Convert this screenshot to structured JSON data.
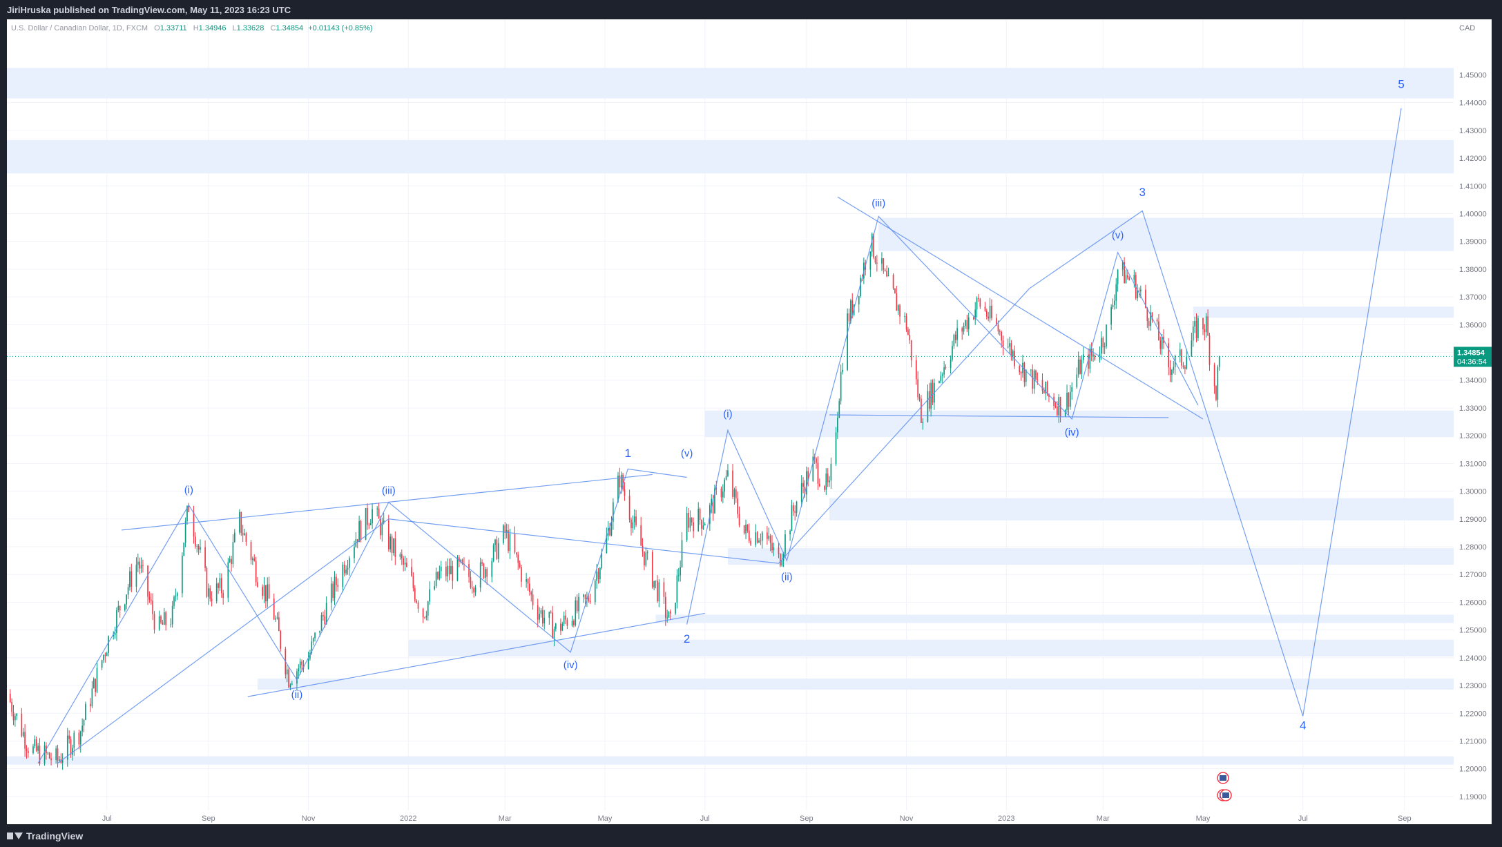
{
  "header": {
    "publisher": "JiriHruska published on TradingView.com, May 11, 2023 16:23 UTC"
  },
  "legend": {
    "symbol": "U.S. Dollar / Canadian Dollar, 1D, FXCM",
    "open_label": "O",
    "open": "1.33711",
    "high_label": "H",
    "high": "1.34946",
    "low_label": "L",
    "low": "1.33628",
    "close_label": "C",
    "close": "1.34854",
    "change": "+0.01143 (+0.85%)"
  },
  "footer": {
    "brand": "TradingView"
  },
  "colors": {
    "up": "#089981",
    "down": "#f23645",
    "zone": "#e8effd",
    "line": "#5b8def",
    "label": "#2962ff",
    "grid": "#f0f3fa"
  },
  "chart_data": {
    "type": "candlestick",
    "currency_label": "CAD",
    "ylim": [
      1.185,
      1.47
    ],
    "y_ticks": [
      1.19,
      1.2,
      1.21,
      1.22,
      1.23,
      1.24,
      1.25,
      1.26,
      1.27,
      1.28,
      1.29,
      1.3,
      1.31,
      1.32,
      1.33,
      1.34,
      1.35,
      1.36,
      1.37,
      1.38,
      1.39,
      1.4,
      1.41,
      1.42,
      1.43,
      1.44,
      1.45
    ],
    "x_ticks": [
      {
        "label": "Jul",
        "date": "2021-07-01"
      },
      {
        "label": "Sep",
        "date": "2021-09-01"
      },
      {
        "label": "Nov",
        "date": "2021-11-01"
      },
      {
        "label": "2022",
        "date": "2022-01-01"
      },
      {
        "label": "Mar",
        "date": "2022-03-01"
      },
      {
        "label": "May",
        "date": "2022-05-01"
      },
      {
        "label": "Jul",
        "date": "2022-07-01"
      },
      {
        "label": "Sep",
        "date": "2022-09-01"
      },
      {
        "label": "Nov",
        "date": "2022-11-01"
      },
      {
        "label": "2023",
        "date": "2023-01-01"
      },
      {
        "label": "Mar",
        "date": "2023-03-01"
      },
      {
        "label": "May",
        "date": "2023-05-01"
      },
      {
        "label": "Jul",
        "date": "2023-07-01"
      },
      {
        "label": "Sep",
        "date": "2023-09-01"
      }
    ],
    "x_range": [
      "2021-05-01",
      "2023-10-01"
    ],
    "last_price": "1.34854",
    "countdown": "04:36:54",
    "price_path": [
      [
        "2021-05-01",
        1.227
      ],
      [
        "2021-05-15",
        1.207
      ],
      [
        "2021-06-01",
        1.203
      ],
      [
        "2021-06-15",
        1.214
      ],
      [
        "2021-07-01",
        1.245
      ],
      [
        "2021-07-10",
        1.26
      ],
      [
        "2021-07-20",
        1.275
      ],
      [
        "2021-08-01",
        1.25
      ],
      [
        "2021-08-10",
        1.255
      ],
      [
        "2021-08-20",
        1.295
      ],
      [
        "2021-09-01",
        1.263
      ],
      [
        "2021-09-10",
        1.265
      ],
      [
        "2021-09-20",
        1.289
      ],
      [
        "2021-10-01",
        1.27
      ],
      [
        "2021-10-10",
        1.258
      ],
      [
        "2021-10-20",
        1.233
      ],
      [
        "2021-11-01",
        1.24
      ],
      [
        "2021-11-10",
        1.255
      ],
      [
        "2021-11-20",
        1.27
      ],
      [
        "2021-12-01",
        1.285
      ],
      [
        "2021-12-10",
        1.293
      ],
      [
        "2021-12-20",
        1.282
      ],
      [
        "2022-01-01",
        1.27
      ],
      [
        "2022-01-10",
        1.256
      ],
      [
        "2022-01-20",
        1.27
      ],
      [
        "2022-02-01",
        1.272
      ],
      [
        "2022-02-10",
        1.268
      ],
      [
        "2022-02-20",
        1.275
      ],
      [
        "2022-03-01",
        1.285
      ],
      [
        "2022-03-10",
        1.272
      ],
      [
        "2022-03-20",
        1.258
      ],
      [
        "2022-04-01",
        1.25
      ],
      [
        "2022-04-10",
        1.255
      ],
      [
        "2022-04-20",
        1.26
      ],
      [
        "2022-05-01",
        1.28
      ],
      [
        "2022-05-10",
        1.305
      ],
      [
        "2022-05-20",
        1.285
      ],
      [
        "2022-06-01",
        1.266
      ],
      [
        "2022-06-10",
        1.252
      ],
      [
        "2022-06-20",
        1.29
      ],
      [
        "2022-07-01",
        1.29
      ],
      [
        "2022-07-10",
        1.3
      ],
      [
        "2022-07-15",
        1.305
      ],
      [
        "2022-07-25",
        1.285
      ],
      [
        "2022-08-05",
        1.285
      ],
      [
        "2022-08-15",
        1.275
      ],
      [
        "2022-08-25",
        1.295
      ],
      [
        "2022-09-05",
        1.31
      ],
      [
        "2022-09-15",
        1.3
      ],
      [
        "2022-09-25",
        1.36
      ],
      [
        "2022-10-01",
        1.37
      ],
      [
        "2022-10-10",
        1.39
      ],
      [
        "2022-10-20",
        1.375
      ],
      [
        "2022-11-01",
        1.36
      ],
      [
        "2022-11-10",
        1.328
      ],
      [
        "2022-11-20",
        1.34
      ],
      [
        "2022-12-01",
        1.355
      ],
      [
        "2022-12-15",
        1.368
      ],
      [
        "2022-12-25",
        1.36
      ],
      [
        "2023-01-10",
        1.345
      ],
      [
        "2023-01-25",
        1.335
      ],
      [
        "2023-02-05",
        1.33
      ],
      [
        "2023-02-15",
        1.345
      ],
      [
        "2023-02-25",
        1.35
      ],
      [
        "2023-03-05",
        1.36
      ],
      [
        "2023-03-10",
        1.38
      ],
      [
        "2023-03-20",
        1.375
      ],
      [
        "2023-04-01",
        1.36
      ],
      [
        "2023-04-10",
        1.345
      ],
      [
        "2023-04-20",
        1.348
      ],
      [
        "2023-04-28",
        1.36
      ],
      [
        "2023-05-03",
        1.36
      ],
      [
        "2023-05-06",
        1.345
      ],
      [
        "2023-05-09",
        1.336
      ],
      [
        "2023-05-11",
        1.3485
      ]
    ],
    "zones": [
      {
        "y1": 1.4415,
        "y2": 1.4525
      },
      {
        "y1": 1.4145,
        "y2": 1.4265
      },
      {
        "y1": 1.3865,
        "y2": 1.3985,
        "from": "2022-10-15"
      },
      {
        "y1": 1.3625,
        "y2": 1.3665,
        "from": "2023-04-25"
      },
      {
        "y1": 1.3195,
        "y2": 1.329,
        "from": "2022-07-01"
      },
      {
        "y1": 1.2895,
        "y2": 1.2975,
        "from": "2022-09-15"
      },
      {
        "y1": 1.2735,
        "y2": 1.2795,
        "from": "2022-07-15"
      },
      {
        "y1": 1.2525,
        "y2": 1.2555,
        "from": "2022-06-01"
      },
      {
        "y1": 1.2405,
        "y2": 1.2465,
        "from": "2022-01-01"
      },
      {
        "y1": 1.2285,
        "y2": 1.2325,
        "from": "2021-10-01"
      },
      {
        "y1": 1.2015,
        "y2": 1.2045
      }
    ],
    "trendlines": [
      [
        [
          "2021-06-01",
          1.202
        ],
        [
          "2021-12-20",
          1.29
        ],
        [
          "2022-08-15",
          1.274
        ],
        [
          "2023-01-15",
          1.373
        ],
        [
          "2023-03-25",
          1.401
        ],
        [
          "2023-07-01",
          1.219
        ]
      ],
      [
        [
          "2021-07-10",
          1.286
        ],
        [
          "2022-05-30",
          1.306
        ]
      ],
      [
        [
          "2021-09-25",
          1.226
        ],
        [
          "2022-07-01",
          1.256
        ]
      ],
      [
        [
          "2022-09-20",
          1.406
        ],
        [
          "2023-05-01",
          1.326
        ]
      ],
      [
        [
          "2022-09-15",
          1.3275
        ],
        [
          "2023-04-10",
          1.3265
        ]
      ],
      [
        [
          "2021-05-20",
          1.202
        ],
        [
          "2021-08-20",
          1.295
        ],
        [
          "2021-10-25",
          1.232
        ],
        [
          "2021-12-20",
          1.296
        ],
        [
          "2022-04-10",
          1.242
        ],
        [
          "2022-05-15",
          1.308
        ],
        [
          "2022-06-20",
          1.305
        ]
      ],
      [
        [
          "2022-06-20",
          1.252
        ],
        [
          "2022-07-15",
          1.322
        ],
        [
          "2022-08-20",
          1.275
        ],
        [
          "2022-10-15",
          1.399
        ],
        [
          "2023-02-10",
          1.326
        ],
        [
          "2023-03-10",
          1.386
        ],
        [
          "2023-04-28",
          1.331
        ]
      ],
      [
        [
          "2023-07-01",
          1.219
        ],
        [
          "2023-08-30",
          1.438
        ]
      ]
    ],
    "wave_labels": [
      {
        "text": "(i)",
        "date": "2021-08-20",
        "price": 1.2993
      },
      {
        "text": "(ii)",
        "date": "2021-10-25",
        "price": 1.2255
      },
      {
        "text": "(iii)",
        "date": "2021-12-20",
        "price": 1.299
      },
      {
        "text": "(iv)",
        "date": "2022-04-10",
        "price": 1.2362
      },
      {
        "text": "1",
        "date": "2022-05-15",
        "price": 1.3123
      },
      {
        "text": "(v)",
        "date": "2022-06-20",
        "price": 1.3124
      },
      {
        "text": "2",
        "date": "2022-06-20",
        "price": 1.2454
      },
      {
        "text": "(i)",
        "date": "2022-07-15",
        "price": 1.3266
      },
      {
        "text": "(ii)",
        "date": "2022-08-20",
        "price": 1.268
      },
      {
        "text": "(iii)",
        "date": "2022-10-15",
        "price": 1.4026
      },
      {
        "text": "(iv)",
        "date": "2023-02-10",
        "price": 1.3201
      },
      {
        "text": "3",
        "date": "2023-03-25",
        "price": 1.4063
      },
      {
        "text": "(v)",
        "date": "2023-03-10",
        "price": 1.3911
      },
      {
        "text": "4",
        "date": "2023-07-01",
        "price": 1.2142
      },
      {
        "text": "5",
        "date": "2023-08-30",
        "price": 1.4452
      }
    ]
  }
}
